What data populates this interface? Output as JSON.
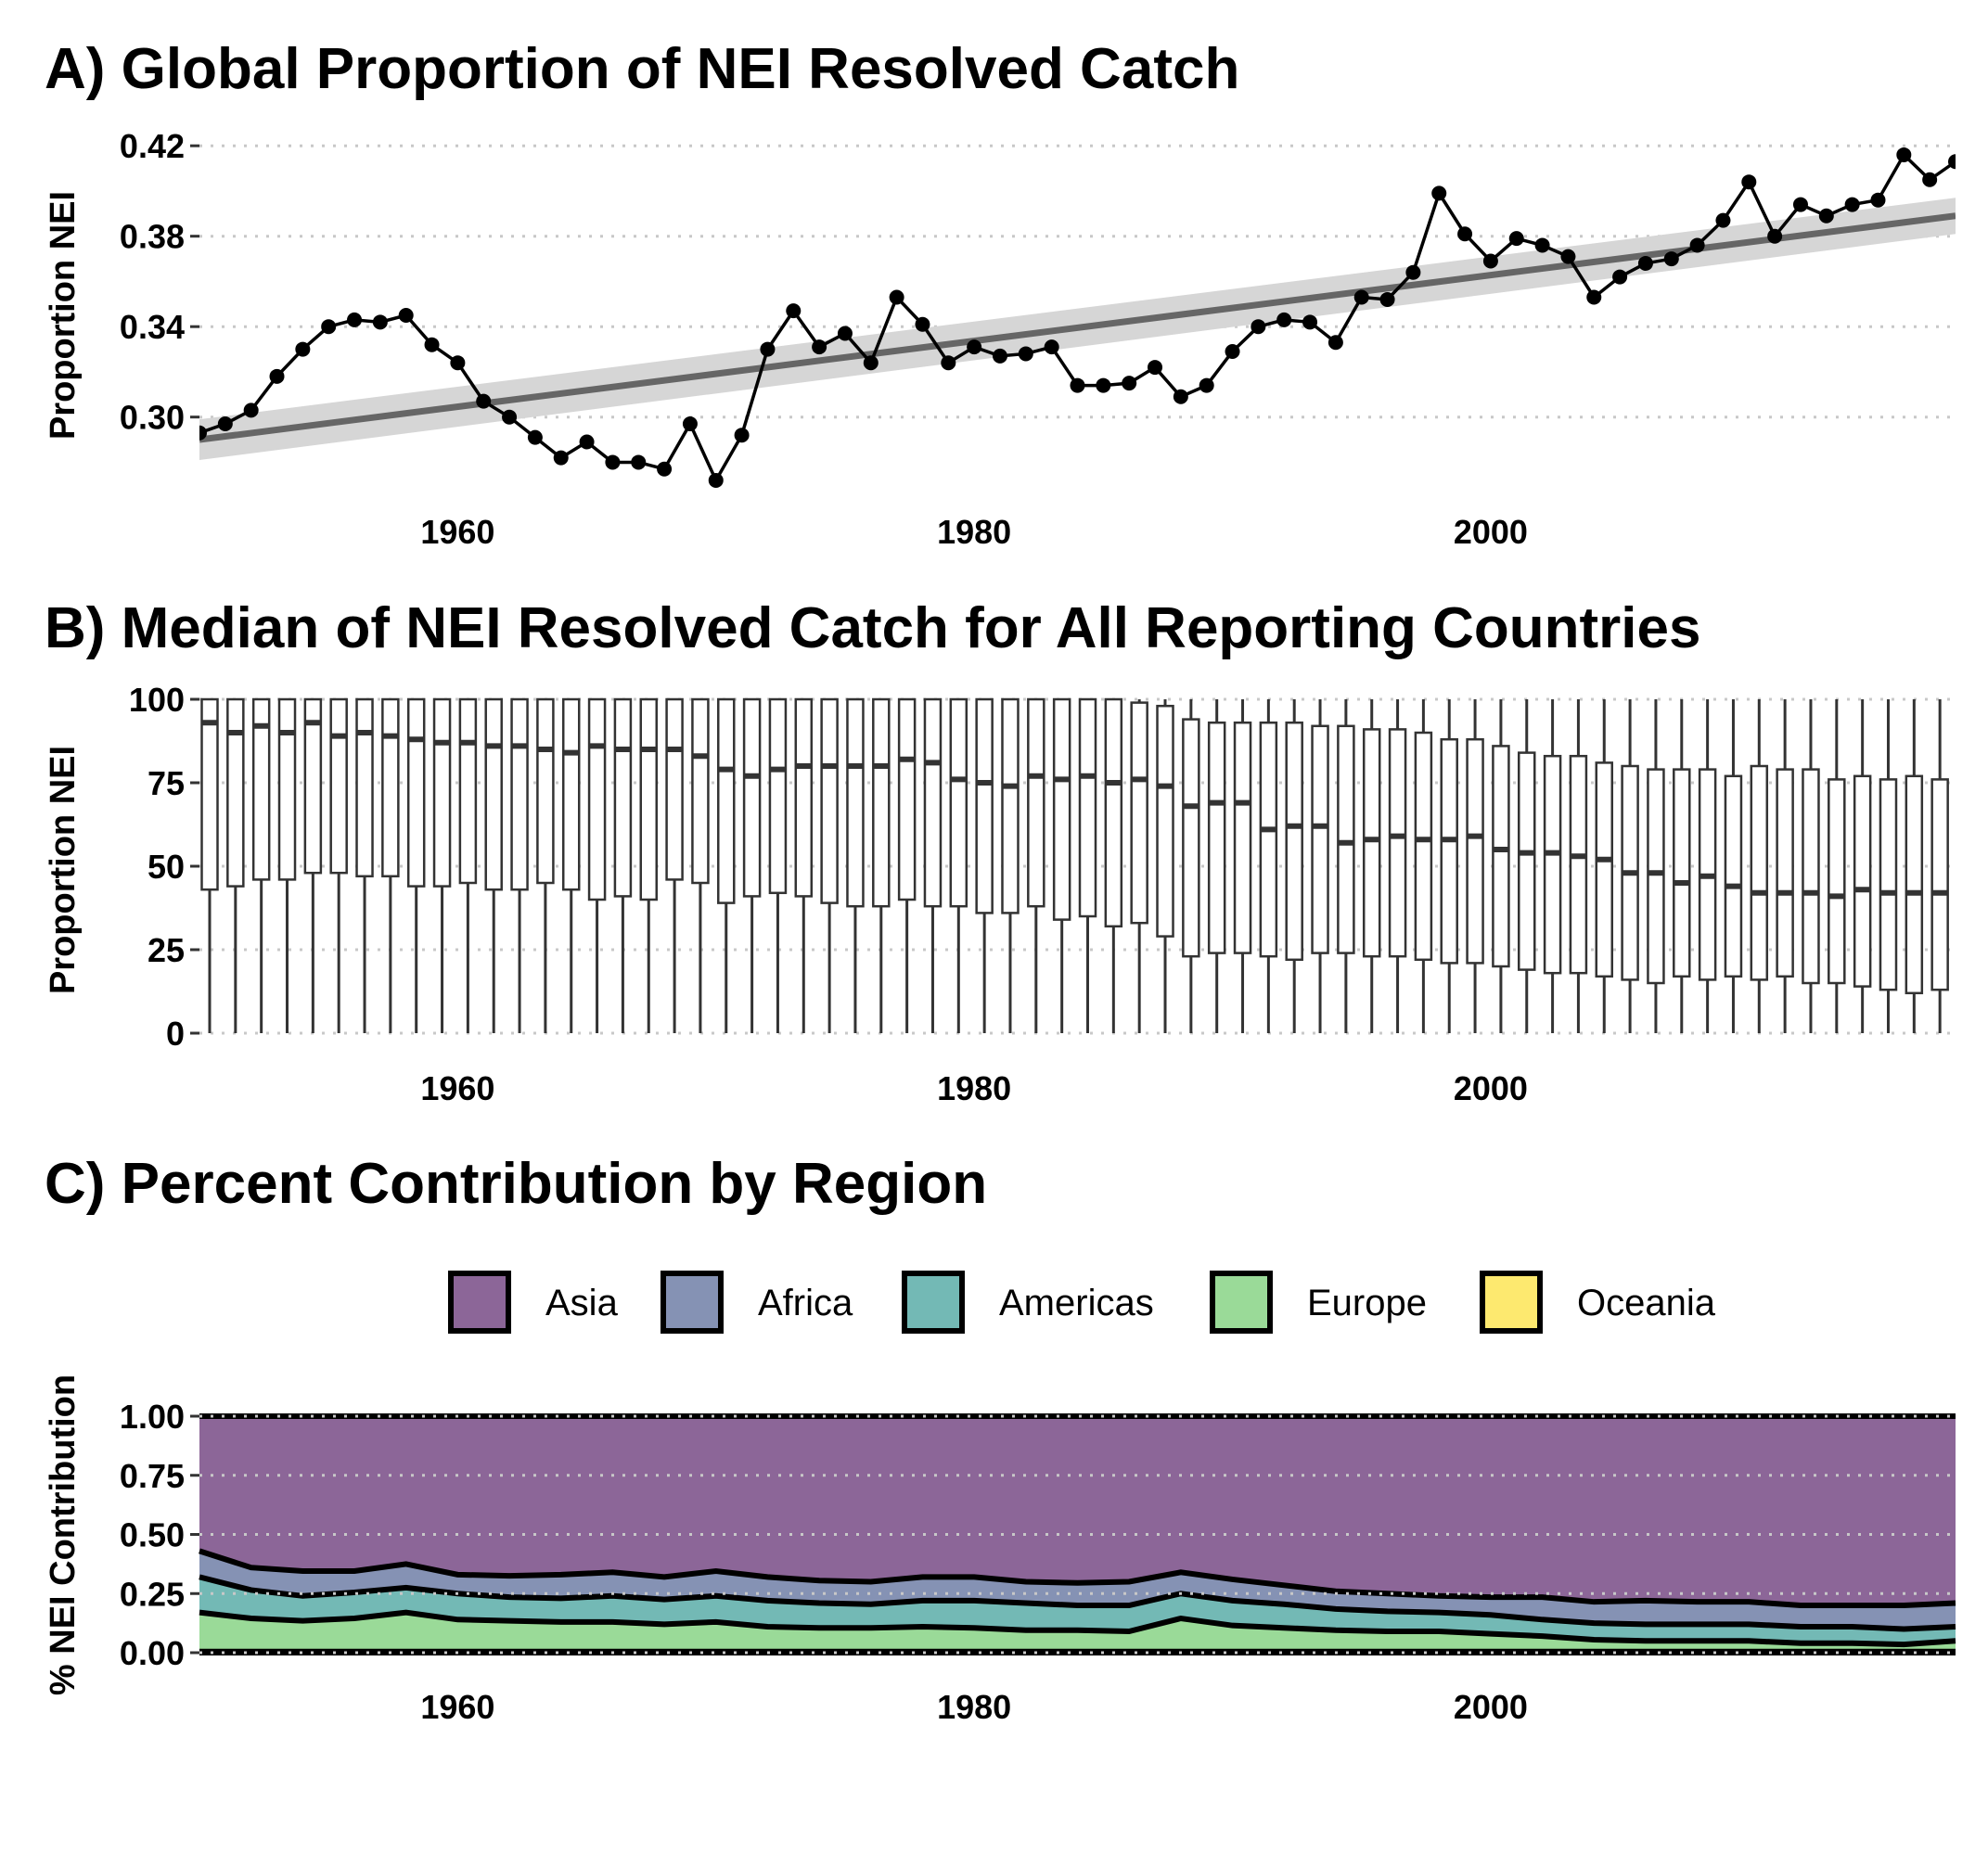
{
  "chart_data": [
    {
      "panel": "A",
      "type": "line",
      "title": "A) Global Proportion of NEI Resolved Catch",
      "ylabel": "Proportion NEI",
      "xlabel": "",
      "xlim": [
        1950,
        2018
      ],
      "ylim": [
        0.265,
        0.425
      ],
      "yticks": [
        0.3,
        0.34,
        0.38,
        0.42
      ],
      "ytick_labels": [
        "0.30",
        "0.34",
        "0.38",
        "0.42"
      ],
      "xticks": [
        1960,
        1980,
        2000
      ],
      "xtick_labels": [
        "1960",
        "1980",
        "2000"
      ],
      "grid": "horizontal dotted",
      "point_color": "#000000",
      "trend_color": "#666666",
      "band_color": "#d6d6d6",
      "x": [
        1950,
        1951,
        1952,
        1953,
        1954,
        1955,
        1956,
        1957,
        1958,
        1959,
        1960,
        1961,
        1962,
        1963,
        1964,
        1965,
        1966,
        1967,
        1968,
        1969,
        1970,
        1971,
        1972,
        1973,
        1974,
        1975,
        1976,
        1977,
        1978,
        1979,
        1980,
        1981,
        1982,
        1983,
        1984,
        1985,
        1986,
        1987,
        1988,
        1989,
        1990,
        1991,
        1992,
        1993,
        1994,
        1995,
        1996,
        1997,
        1998,
        1999,
        2000,
        2001,
        2002,
        2003,
        2004,
        2005,
        2006,
        2007,
        2008,
        2009,
        2010,
        2011,
        2012,
        2013,
        2014,
        2015,
        2016,
        2017,
        2018
      ],
      "y": [
        0.293,
        0.297,
        0.303,
        0.318,
        0.33,
        0.34,
        0.343,
        0.342,
        0.345,
        0.332,
        0.324,
        0.307,
        0.3,
        0.291,
        0.282,
        0.289,
        0.28,
        0.28,
        0.277,
        0.297,
        0.272,
        0.292,
        0.33,
        0.347,
        0.331,
        0.337,
        0.324,
        0.353,
        0.341,
        0.324,
        0.331,
        0.327,
        0.328,
        0.331,
        0.314,
        0.314,
        0.315,
        0.322,
        0.309,
        0.314,
        0.329,
        0.34,
        0.343,
        0.342,
        0.333,
        0.353,
        0.352,
        0.364,
        0.399,
        0.381,
        0.369,
        0.379,
        0.376,
        0.371,
        0.353,
        0.362,
        0.368,
        0.37,
        0.376,
        0.387,
        0.404,
        0.38,
        0.394,
        0.389,
        0.394,
        0.396,
        0.416,
        0.405,
        0.413
      ],
      "trend": {
        "x": [
          1950,
          2018
        ],
        "y": [
          0.29,
          0.389
        ],
        "ci_low": [
          0.281,
          0.381
        ],
        "ci_high": [
          0.299,
          0.397
        ]
      }
    },
    {
      "panel": "B",
      "type": "box",
      "title": "B) Median of NEI Resolved Catch for All Reporting Countries",
      "ylabel": "Proportion NEI",
      "xlabel": "",
      "xlim": [
        1950,
        2018
      ],
      "ylim": [
        0,
        100
      ],
      "yticks": [
        0,
        25,
        50,
        75,
        100
      ],
      "ytick_labels": [
        "0",
        "25",
        "50",
        "75",
        "100"
      ],
      "xticks": [
        1960,
        1980,
        2000
      ],
      "xtick_labels": [
        "1960",
        "1980",
        "2000"
      ],
      "grid": "horizontal dotted",
      "whisker_low": 0,
      "whisker_high": 100,
      "q3": 100,
      "x": [
        1950,
        1951,
        1952,
        1953,
        1954,
        1955,
        1956,
        1957,
        1958,
        1959,
        1960,
        1961,
        1962,
        1963,
        1964,
        1965,
        1966,
        1967,
        1968,
        1969,
        1970,
        1971,
        1972,
        1973,
        1974,
        1975,
        1976,
        1977,
        1978,
        1979,
        1980,
        1981,
        1982,
        1983,
        1984,
        1985,
        1986,
        1987,
        1988,
        1989,
        1990,
        1991,
        1992,
        1993,
        1994,
        1995,
        1996,
        1997,
        1998,
        1999,
        2000,
        2001,
        2002,
        2003,
        2004,
        2005,
        2006,
        2007,
        2008,
        2009,
        2010,
        2011,
        2012,
        2013,
        2014,
        2015,
        2016,
        2017
      ],
      "median": [
        93,
        90,
        92,
        90,
        93,
        89,
        90,
        89,
        88,
        87,
        87,
        86,
        86,
        85,
        84,
        86,
        85,
        85,
        85,
        83,
        79,
        77,
        79,
        80,
        80,
        80,
        80,
        82,
        81,
        76,
        75,
        74,
        77,
        76,
        77,
        75,
        76,
        74,
        68,
        69,
        69,
        61,
        62,
        62,
        57,
        58,
        59,
        58,
        58,
        59,
        55,
        54,
        54,
        53,
        52,
        48,
        48,
        45,
        47,
        44,
        42,
        42,
        42,
        41,
        43,
        42,
        42,
        42
      ],
      "q1": [
        43,
        44,
        46,
        46,
        48,
        48,
        47,
        47,
        44,
        44,
        45,
        43,
        43,
        45,
        43,
        40,
        41,
        40,
        46,
        45,
        39,
        41,
        42,
        41,
        39,
        38,
        38,
        40,
        38,
        38,
        36,
        36,
        38,
        34,
        35,
        32,
        33,
        29,
        23,
        24,
        24,
        23,
        22,
        24,
        24,
        23,
        23,
        22,
        21,
        21,
        20,
        19,
        18,
        18,
        17,
        16,
        15,
        17,
        16,
        17,
        16,
        17,
        15,
        15,
        14,
        13,
        12,
        13
      ],
      "q3_upper": [
        100,
        100,
        100,
        100,
        100,
        100,
        100,
        100,
        100,
        100,
        100,
        100,
        100,
        100,
        100,
        100,
        100,
        100,
        100,
        100,
        100,
        100,
        100,
        100,
        100,
        100,
        100,
        100,
        100,
        100,
        100,
        100,
        100,
        100,
        100,
        100,
        99,
        98,
        94,
        93,
        93,
        93,
        93,
        92,
        92,
        91,
        91,
        90,
        88,
        88,
        86,
        84,
        83,
        83,
        81,
        80,
        79,
        79,
        79,
        77,
        80,
        79,
        79,
        76,
        77,
        76,
        77,
        76
      ]
    },
    {
      "panel": "C",
      "type": "area",
      "title": "C) Percent Contribution by Region",
      "ylabel": "% NEI Contribution",
      "xlabel": "",
      "xlim": [
        1950,
        2018
      ],
      "ylim": [
        0,
        1
      ],
      "yticks": [
        0,
        0.25,
        0.5,
        0.75,
        1.0
      ],
      "ytick_labels": [
        "0.00",
        "0.25",
        "0.50",
        "0.75",
        "1.00"
      ],
      "xticks": [
        1960,
        1980,
        2000
      ],
      "xtick_labels": [
        "1960",
        "1980",
        "2000"
      ],
      "grid": "horizontal dotted",
      "legend_position": "top",
      "x": [
        1950,
        1952,
        1954,
        1956,
        1958,
        1960,
        1962,
        1964,
        1966,
        1968,
        1970,
        1972,
        1974,
        1976,
        1978,
        1980,
        1982,
        1984,
        1986,
        1988,
        1990,
        1992,
        1994,
        1996,
        1998,
        2000,
        2002,
        2004,
        2006,
        2008,
        2010,
        2012,
        2014,
        2016,
        2018
      ],
      "series": [
        {
          "name": "Oceania",
          "color": "#FDE96F",
          "values": [
            0.005,
            0.005,
            0.005,
            0.005,
            0.005,
            0.005,
            0.005,
            0.005,
            0.005,
            0.005,
            0.005,
            0.005,
            0.005,
            0.005,
            0.005,
            0.005,
            0.005,
            0.005,
            0.005,
            0.005,
            0.005,
            0.005,
            0.005,
            0.005,
            0.005,
            0.005,
            0.005,
            0.005,
            0.005,
            0.005,
            0.005,
            0.005,
            0.005,
            0.005,
            0.005
          ]
        },
        {
          "name": "Europe",
          "color": "#9ADA98",
          "values": [
            0.165,
            0.14,
            0.13,
            0.14,
            0.165,
            0.135,
            0.13,
            0.125,
            0.125,
            0.115,
            0.125,
            0.105,
            0.1,
            0.1,
            0.105,
            0.1,
            0.09,
            0.09,
            0.085,
            0.14,
            0.11,
            0.1,
            0.09,
            0.085,
            0.085,
            0.075,
            0.065,
            0.05,
            0.045,
            0.045,
            0.045,
            0.035,
            0.035,
            0.03,
            0.045
          ]
        },
        {
          "name": "Americas",
          "color": "#73B9B5",
          "values": [
            0.15,
            0.12,
            0.105,
            0.11,
            0.105,
            0.11,
            0.1,
            0.1,
            0.11,
            0.105,
            0.11,
            0.11,
            0.105,
            0.1,
            0.11,
            0.115,
            0.115,
            0.105,
            0.11,
            0.105,
            0.105,
            0.1,
            0.09,
            0.085,
            0.08,
            0.08,
            0.07,
            0.07,
            0.07,
            0.07,
            0.07,
            0.07,
            0.07,
            0.065,
            0.06
          ]
        },
        {
          "name": "Africa",
          "color": "#8592B4",
          "values": [
            0.11,
            0.095,
            0.105,
            0.09,
            0.1,
            0.08,
            0.09,
            0.1,
            0.1,
            0.095,
            0.105,
            0.1,
            0.095,
            0.095,
            0.1,
            0.1,
            0.09,
            0.095,
            0.1,
            0.09,
            0.09,
            0.08,
            0.075,
            0.075,
            0.07,
            0.075,
            0.095,
            0.09,
            0.1,
            0.095,
            0.095,
            0.09,
            0.09,
            0.1,
            0.1
          ]
        },
        {
          "name": "Asia",
          "color": "#8C6698",
          "values": [
            0.57,
            0.64,
            0.655,
            0.655,
            0.625,
            0.67,
            0.675,
            0.67,
            0.66,
            0.68,
            0.655,
            0.68,
            0.695,
            0.7,
            0.68,
            0.68,
            0.7,
            0.705,
            0.7,
            0.66,
            0.69,
            0.715,
            0.74,
            0.75,
            0.76,
            0.765,
            0.765,
            0.785,
            0.78,
            0.785,
            0.785,
            0.8,
            0.8,
            0.8,
            0.79
          ]
        }
      ]
    }
  ]
}
